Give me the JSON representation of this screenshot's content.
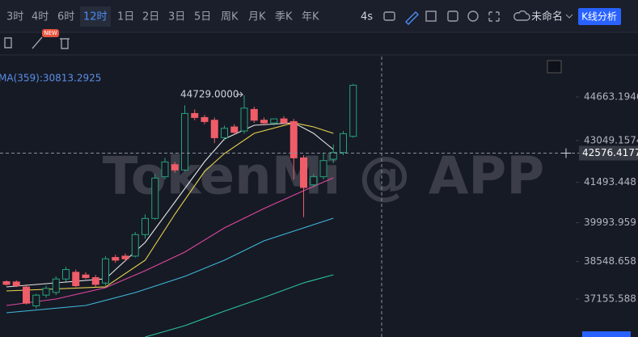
{
  "toolbar": {
    "intervals": [
      "3时",
      "4时",
      "6时",
      "12时",
      "1日",
      "2日",
      "3日",
      "5日",
      "周K",
      "月K",
      "季K",
      "年K"
    ],
    "selected": "12时",
    "refresh": "4s",
    "layout_name": "未命名",
    "analysis_button": "K线分析",
    "badge": "NEW"
  },
  "chart_data": {
    "type": "candlestick",
    "indicator_label": "MA(359):30813.2925",
    "watermark": "TokenMi @ APP",
    "annotation": {
      "text": "44729.0000",
      "value": 44729,
      "index": 24
    },
    "crosshair_price": {
      "value": 42576.4177,
      "label": "42576.4177"
    },
    "up_color": "#26a17b",
    "down_color": "#ef5d68",
    "ylim": [
      35744,
      46165
    ],
    "yticks": [
      44663.1946,
      43049.1574,
      41493.448,
      39993.959,
      38548.658,
      37155.588
    ],
    "open": [
      37800,
      37790,
      37600,
      36900,
      37300,
      37400,
      37900,
      38150,
      38050,
      37950,
      37750,
      38700,
      38750,
      38750,
      39550,
      40150,
      41700,
      42150,
      41950,
      44050,
      43900,
      43800,
      43150,
      43550,
      43400,
      44200,
      43800,
      43700,
      43850,
      43750,
      42400,
      41400,
      41700,
      42350,
      42600,
      43200
    ],
    "high": [
      37850,
      37850,
      37700,
      37350,
      37650,
      38000,
      38350,
      38250,
      38150,
      38050,
      38750,
      38800,
      38850,
      39650,
      40300,
      41800,
      42400,
      42250,
      44350,
      44200,
      44000,
      43900,
      43600,
      43650,
      44729,
      44300,
      43900,
      43850,
      43950,
      43850,
      42500,
      41800,
      42600,
      42900,
      43400,
      45150
    ],
    "low": [
      37650,
      37600,
      36950,
      36800,
      37200,
      37300,
      37800,
      37600,
      37900,
      37600,
      37650,
      38500,
      38550,
      38700,
      39400,
      40100,
      41600,
      41850,
      41900,
      43800,
      43650,
      42950,
      43050,
      43250,
      43300,
      43700,
      43600,
      43600,
      43650,
      41600,
      40200,
      41300,
      41600,
      42200,
      42500,
      43150
    ],
    "close": [
      37700,
      37650,
      37000,
      37300,
      37550,
      37900,
      38250,
      37650,
      37950,
      37700,
      38650,
      38600,
      38650,
      39550,
      40150,
      41650,
      42250,
      41950,
      44050,
      43900,
      43750,
      43150,
      43500,
      43350,
      44250,
      43800,
      43700,
      43850,
      43700,
      42400,
      41300,
      41700,
      42300,
      42600,
      43300,
      45100
    ],
    "series": [
      {
        "color": "#e6e6e6",
        "x": [
          0,
          5,
          10,
          14,
          17,
          20,
          22,
          25,
          29,
          31,
          33
        ],
        "values": [
          37606,
          37756,
          37906,
          39258,
          40759,
          42261,
          43102,
          43612,
          43702,
          43312,
          42711
        ]
      },
      {
        "color": "#e8d44d",
        "x": [
          0,
          10,
          14,
          17,
          20,
          22,
          25,
          29,
          31,
          33
        ],
        "values": [
          37456,
          37606,
          38597,
          40309,
          41900,
          42561,
          43312,
          43702,
          43552,
          43312
        ]
      },
      {
        "color": "#e0479e",
        "x": [
          0,
          5,
          10,
          14,
          18,
          22,
          26,
          30,
          33
        ],
        "values": [
          36915,
          37156,
          37576,
          38207,
          38897,
          39798,
          40519,
          41180,
          41660
        ]
      },
      {
        "color": "#3fb7d9",
        "x": [
          0,
          8,
          13,
          18,
          22,
          26,
          30,
          33
        ],
        "values": [
          36645,
          36915,
          37396,
          37996,
          38597,
          39318,
          39798,
          40158
        ]
      },
      {
        "color": "#2bc0a0",
        "x": [
          14,
          18,
          22,
          26,
          30,
          33
        ],
        "values": [
          35744,
          36165,
          36705,
          37216,
          37756,
          38057
        ]
      }
    ]
  }
}
